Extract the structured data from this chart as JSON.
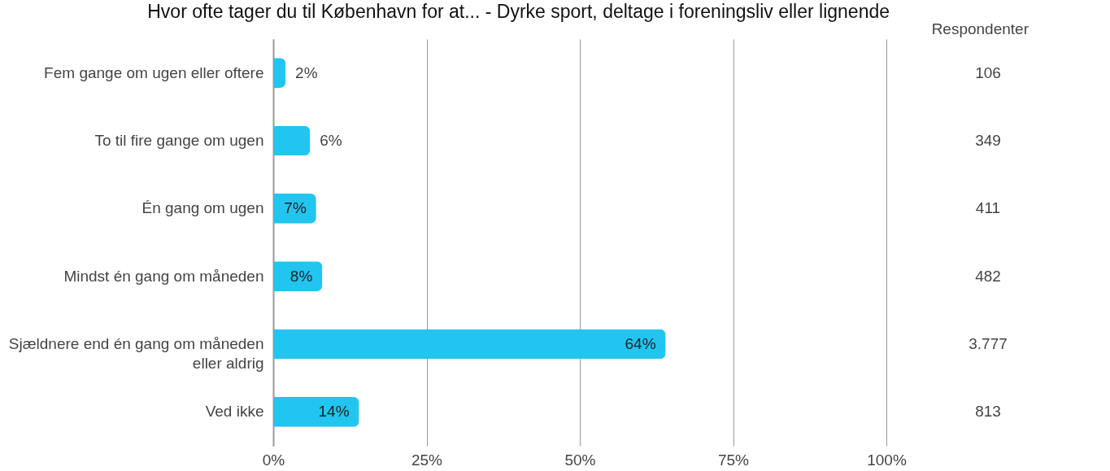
{
  "chart_data": {
    "type": "bar",
    "orientation": "horizontal",
    "title": "Hvor ofte tager du til København for at... - Dyrke sport, deltage i foreningsliv eller lignende",
    "categories": [
      "Fem gange om ugen eller oftere",
      "To til fire gange om ugen",
      "Én gang om ugen",
      "Mindst én gang om måneden",
      "Sjældnere end én gang om måneden eller aldrig",
      "Ved ikke"
    ],
    "values": [
      2,
      6,
      7,
      8,
      64,
      14
    ],
    "value_labels": [
      "2%",
      "6%",
      "7%",
      "8%",
      "64%",
      "14%"
    ],
    "color": "#22c4f0",
    "xlim": [
      0,
      100
    ],
    "xticks": [
      {
        "value": 0,
        "label": "0%"
      },
      {
        "value": 25,
        "label": "25%"
      },
      {
        "value": 50,
        "label": "50%"
      },
      {
        "value": 75,
        "label": "75%"
      },
      {
        "value": 100,
        "label": "100%"
      }
    ],
    "grid": "x",
    "annotations": [
      "Respondenter",
      "106",
      "349",
      "411",
      "482",
      "3.777",
      "813"
    ]
  }
}
